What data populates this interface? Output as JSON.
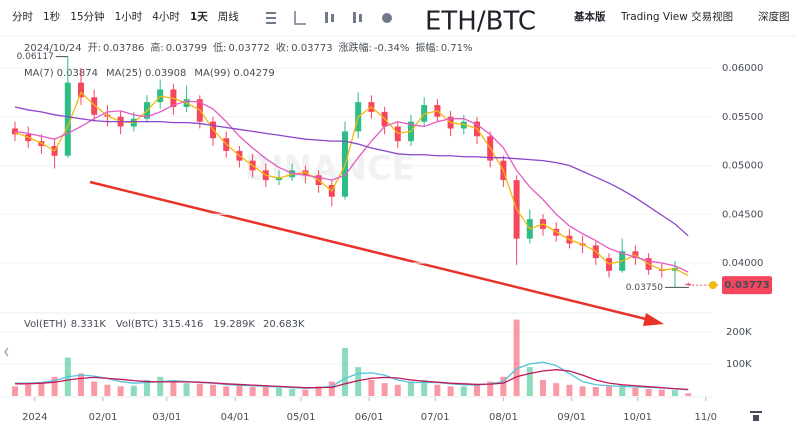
{
  "toolbar": {
    "intervals": [
      "分时",
      "1秒",
      "15分钟",
      "1小时",
      "4小时",
      "1天",
      "周线"
    ],
    "active": 5,
    "views": [
      "基本版",
      "Trading View 交易视图",
      "深度图"
    ]
  },
  "chart_data": {
    "type": "candlestick",
    "title": "ETH/BTC",
    "watermark": "BINANCE",
    "date": "2024/10/24",
    "info_labels": [
      "开:",
      "高:",
      "低:",
      "收:",
      "涨跌幅:",
      "振幅:"
    ],
    "change": "-0.34%",
    "amplitude": "0.71%",
    "up_color": "#2ebd85",
    "down_color": "#f6465d",
    "ohlc": [
      [
        0.0538,
        0.0545,
        0.0525,
        0.0532
      ],
      [
        0.0532,
        0.054,
        0.0518,
        0.0525
      ],
      [
        0.0525,
        0.0532,
        0.0512,
        0.052
      ],
      [
        0.052,
        0.0528,
        0.0497,
        0.051
      ],
      [
        0.051,
        0.06117,
        0.0508,
        0.0585
      ],
      [
        0.0585,
        0.06,
        0.0562,
        0.057
      ],
      [
        0.057,
        0.0578,
        0.0545,
        0.0552
      ],
      [
        0.0552,
        0.0562,
        0.054,
        0.055
      ],
      [
        0.055,
        0.0556,
        0.0532,
        0.054
      ],
      [
        0.054,
        0.0555,
        0.0535,
        0.0548
      ],
      [
        0.0548,
        0.0572,
        0.0544,
        0.0565
      ],
      [
        0.0565,
        0.0588,
        0.0558,
        0.0578
      ],
      [
        0.0578,
        0.0584,
        0.0552,
        0.056
      ],
      [
        0.056,
        0.0582,
        0.0555,
        0.0568
      ],
      [
        0.0568,
        0.0572,
        0.0538,
        0.0545
      ],
      [
        0.0545,
        0.055,
        0.052,
        0.0528
      ],
      [
        0.0528,
        0.0535,
        0.0508,
        0.0515
      ],
      [
        0.0515,
        0.052,
        0.0498,
        0.0505
      ],
      [
        0.0505,
        0.0512,
        0.0488,
        0.0495
      ],
      [
        0.0495,
        0.0502,
        0.0478,
        0.0485
      ],
      [
        0.0485,
        0.0495,
        0.048,
        0.0488
      ],
      [
        0.0488,
        0.0502,
        0.0484,
        0.0495
      ],
      [
        0.0495,
        0.05,
        0.0482,
        0.049
      ],
      [
        0.049,
        0.0495,
        0.0472,
        0.048
      ],
      [
        0.048,
        0.0485,
        0.0458,
        0.0468
      ],
      [
        0.0468,
        0.0545,
        0.0465,
        0.0535
      ],
      [
        0.0535,
        0.0575,
        0.0528,
        0.0565
      ],
      [
        0.0565,
        0.0572,
        0.0548,
        0.0555
      ],
      [
        0.0555,
        0.056,
        0.0532,
        0.054
      ],
      [
        0.054,
        0.0545,
        0.0518,
        0.0525
      ],
      [
        0.0525,
        0.0552,
        0.052,
        0.0545
      ],
      [
        0.0545,
        0.057,
        0.054,
        0.0562
      ],
      [
        0.0562,
        0.0568,
        0.0545,
        0.055
      ],
      [
        0.055,
        0.0556,
        0.053,
        0.0538
      ],
      [
        0.0538,
        0.0552,
        0.0532,
        0.0545
      ],
      [
        0.0545,
        0.055,
        0.0522,
        0.053
      ],
      [
        0.053,
        0.0535,
        0.0498,
        0.0505
      ],
      [
        0.0505,
        0.051,
        0.0478,
        0.0485
      ],
      [
        0.0485,
        0.049,
        0.0398,
        0.0425
      ],
      [
        0.0425,
        0.0455,
        0.042,
        0.0445
      ],
      [
        0.0445,
        0.045,
        0.0428,
        0.0435
      ],
      [
        0.0435,
        0.0442,
        0.0422,
        0.0428
      ],
      [
        0.0428,
        0.0435,
        0.0415,
        0.042
      ],
      [
        0.042,
        0.0428,
        0.041,
        0.0418
      ],
      [
        0.0418,
        0.0422,
        0.0398,
        0.0405
      ],
      [
        0.0405,
        0.041,
        0.0385,
        0.0392
      ],
      [
        0.0392,
        0.0425,
        0.039,
        0.0412
      ],
      [
        0.0412,
        0.0418,
        0.0398,
        0.0405
      ],
      [
        0.0405,
        0.041,
        0.0388,
        0.0393
      ],
      [
        0.0393,
        0.04,
        0.0385,
        0.0392
      ],
      [
        0.0392,
        0.0402,
        0.0375,
        0.0395
      ],
      [
        0.03786,
        0.03799,
        0.03772,
        0.03773
      ]
    ],
    "min_label": "0.03750",
    "series": [
      {
        "name": "MA(7)",
        "color": "#f0b90b",
        "values": [
          0.0534,
          0.0529,
          0.0523,
          0.0515,
          0.054,
          0.0575,
          0.0562,
          0.0551,
          0.0545,
          0.0544,
          0.0556,
          0.0571,
          0.0569,
          0.0564,
          0.0557,
          0.0537,
          0.0522,
          0.051,
          0.05,
          0.049,
          0.0487,
          0.0491,
          0.0493,
          0.0485,
          0.0474,
          0.05,
          0.055,
          0.056,
          0.0548,
          0.0533,
          0.0535,
          0.0553,
          0.0556,
          0.0544,
          0.0542,
          0.0538,
          0.0518,
          0.0495,
          0.0455,
          0.0435,
          0.044,
          0.0432,
          0.0424,
          0.0419,
          0.0412,
          0.0399,
          0.0402,
          0.0408,
          0.0399,
          0.0393,
          0.0394,
          0.03874
        ]
      },
      {
        "name": "MA(25)",
        "color": "#e45bc4",
        "values": [
          0.0535,
          0.0533,
          0.053,
          0.0527,
          0.0533,
          0.054,
          0.0548,
          0.0555,
          0.0556,
          0.0552,
          0.055,
          0.0555,
          0.0562,
          0.0566,
          0.0565,
          0.0558,
          0.0545,
          0.053,
          0.0518,
          0.0507,
          0.0498,
          0.0492,
          0.049,
          0.0488,
          0.0485,
          0.049,
          0.0508,
          0.0525,
          0.054,
          0.0545,
          0.0542,
          0.054,
          0.0545,
          0.0548,
          0.0548,
          0.0542,
          0.0532,
          0.0518,
          0.0495,
          0.0478,
          0.0465,
          0.045,
          0.0438,
          0.043,
          0.0423,
          0.0415,
          0.041,
          0.0406,
          0.0402,
          0.04,
          0.0397,
          0.03908
        ]
      },
      {
        "name": "MA(99)",
        "color": "#8a47c9",
        "values": [
          0.056,
          0.0557,
          0.0555,
          0.0552,
          0.055,
          0.0548,
          0.0546,
          0.0545,
          0.0545,
          0.0545,
          0.0545,
          0.0545,
          0.0544,
          0.0544,
          0.0543,
          0.0541,
          0.0539,
          0.0537,
          0.0535,
          0.0533,
          0.0531,
          0.0529,
          0.0527,
          0.0526,
          0.0525,
          0.0525,
          0.0522,
          0.0518,
          0.0515,
          0.0512,
          0.0511,
          0.0511,
          0.051,
          0.051,
          0.0509,
          0.0509,
          0.0508,
          0.0508,
          0.0507,
          0.0506,
          0.0505,
          0.0503,
          0.05,
          0.0494,
          0.0488,
          0.0482,
          0.0475,
          0.0467,
          0.0458,
          0.0449,
          0.044,
          0.04279
        ]
      }
    ],
    "ylim": [
      0.03518,
      0.06236
    ],
    "yticks": [
      {
        "value": 0.04,
        "label": "0.04000"
      },
      {
        "value": 0.045,
        "label": "0.04500"
      },
      {
        "value": 0.05,
        "label": "0.05000"
      },
      {
        "value": 0.055,
        "label": "0.05500"
      },
      {
        "value": 0.06,
        "label": "0.06000"
      }
    ],
    "xlim": [
      -1.14,
      59.2
    ],
    "xticks": [
      {
        "value": 1.5,
        "label": "2024"
      },
      {
        "value": 6.67,
        "label": "02/01"
      },
      {
        "value": 11.5,
        "label": "03/01"
      },
      {
        "value": 16.67,
        "label": "04/01"
      },
      {
        "value": 21.67,
        "label": "05/01"
      },
      {
        "value": 26.83,
        "label": "06/01"
      },
      {
        "value": 31.83,
        "label": "07/01"
      },
      {
        "value": 37,
        "label": "08/01"
      },
      {
        "value": 42.17,
        "label": "09/01"
      },
      {
        "value": 47.17,
        "label": "10/01"
      },
      {
        "value": 52.33,
        "label": "11/0"
      }
    ],
    "volume": {
      "name": "Vol(ETH)",
      "value_label": "8.331K",
      "quote_name": "Vol(BTC)",
      "quote_value": "315.416",
      "values": [
        30000,
        35000,
        40000,
        60000,
        120000,
        70000,
        45000,
        35000,
        30000,
        32000,
        50000,
        60000,
        45000,
        40000,
        38000,
        35000,
        30000,
        32000,
        28000,
        30000,
        25000,
        22000,
        20000,
        30000,
        45000,
        150000,
        90000,
        50000,
        40000,
        35000,
        45000,
        50000,
        35000,
        30000,
        30000,
        35000,
        45000,
        60000,
        238000,
        90000,
        50000,
        40000,
        35000,
        30000,
        28000,
        30000,
        35000,
        25000,
        22000,
        20000,
        18000,
        8331
      ],
      "ma": [
        {
          "color": "#4fc3d9",
          "value_label": "19.289K",
          "values": [
            40000,
            40000,
            42000,
            48000,
            60000,
            65000,
            62000,
            55000,
            45000,
            40000,
            42000,
            45000,
            48000,
            45000,
            42000,
            40000,
            36000,
            33000,
            32000,
            30000,
            28000,
            26000,
            24000,
            26000,
            30000,
            55000,
            70000,
            72000,
            65000,
            50000,
            42000,
            42000,
            42000,
            38000,
            35000,
            34000,
            38000,
            45000,
            85000,
            100000,
            105000,
            95000,
            70000,
            45000,
            35000,
            32000,
            30000,
            28000,
            27000,
            25000,
            22000,
            19289
          ]
        },
        {
          "color": "#c2185b",
          "value_label": "20.683K",
          "values": [
            38000,
            38000,
            40000,
            43000,
            50000,
            55000,
            58000,
            55000,
            52000,
            48000,
            45000,
            44000,
            44000,
            44000,
            43000,
            41000,
            38000,
            36000,
            34000,
            32000,
            30000,
            28000,
            26000,
            26000,
            27000,
            38000,
            48000,
            55000,
            58000,
            56000,
            50000,
            46000,
            43000,
            40000,
            38000,
            36000,
            37000,
            40000,
            60000,
            70000,
            78000,
            82000,
            78000,
            65000,
            50000,
            40000,
            35000,
            32000,
            29000,
            26000,
            23000,
            20683
          ]
        }
      ],
      "ylim": [
        0,
        240000
      ],
      "yticks": [
        {
          "value": 100000,
          "label": "100K"
        },
        {
          "value": 200000,
          "label": "200K"
        }
      ]
    }
  }
}
